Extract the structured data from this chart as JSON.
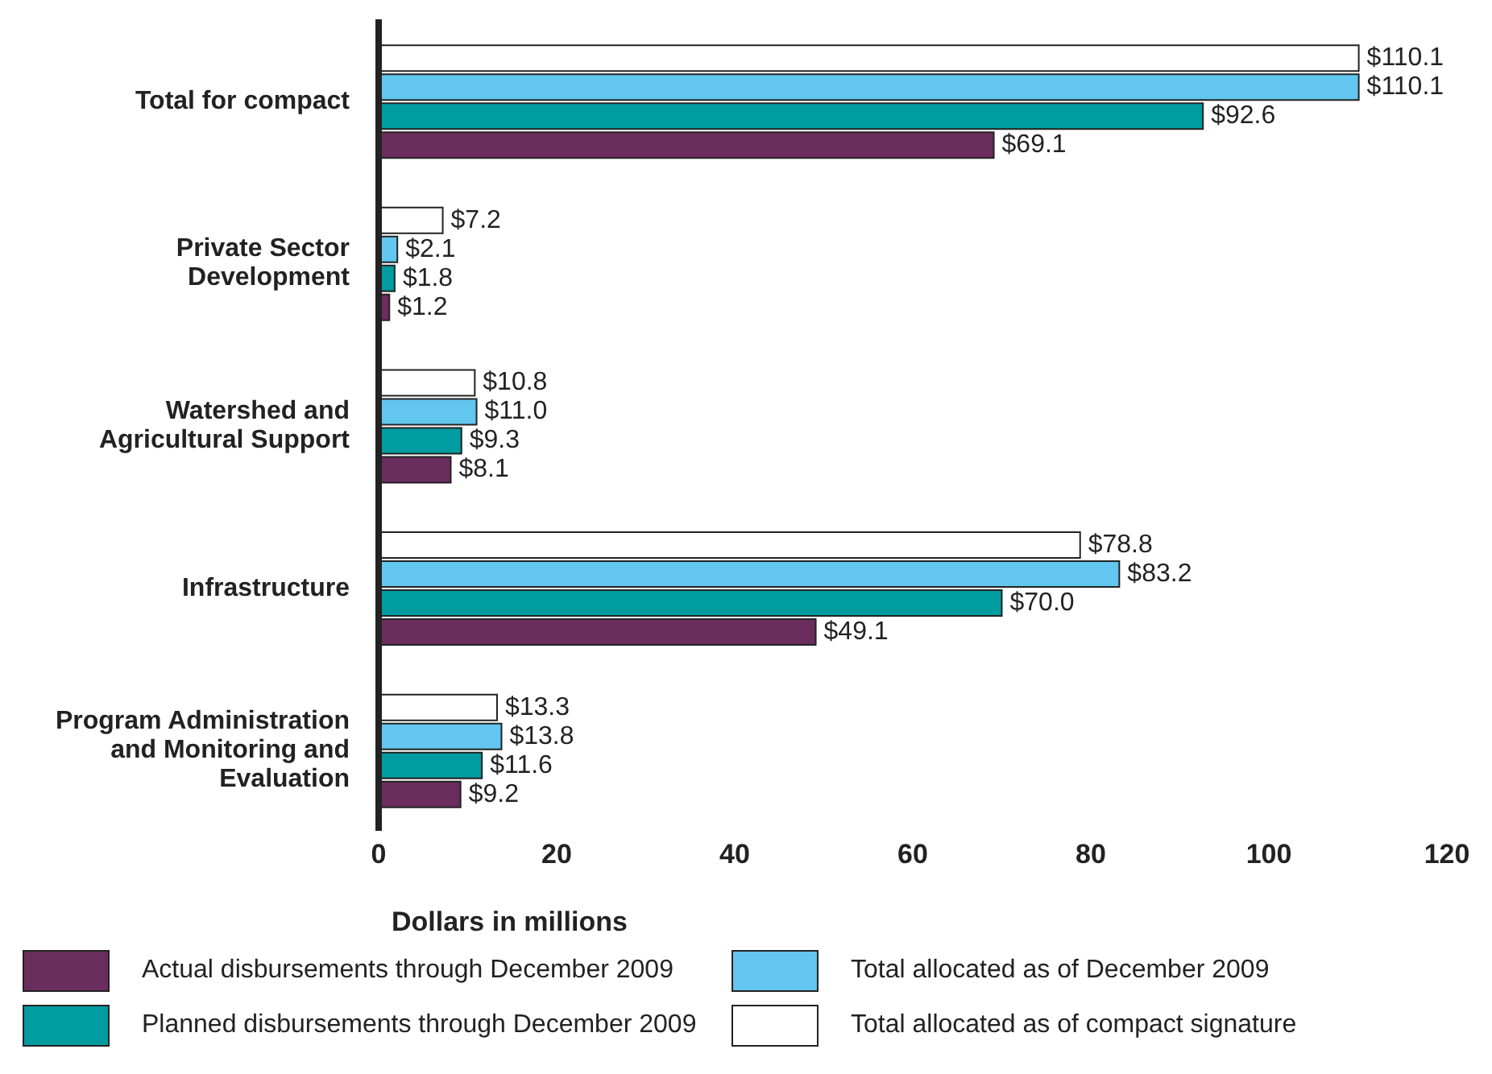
{
  "chart_data": {
    "type": "bar",
    "orientation": "horizontal",
    "xlabel": "Dollars in millions",
    "categories": [
      "Total for compact",
      "Private Sector Development",
      "Watershed and Agricultural Support",
      "Infrastructure",
      "Program Administration and Monitoring and Evaluation"
    ],
    "xlim": [
      0,
      120
    ],
    "xticks": [
      0,
      20,
      40,
      60,
      80,
      100,
      120
    ],
    "grid": false,
    "legend": "bottom",
    "series": [
      {
        "name": "Total allocated as of compact signature",
        "color": "#ffffff",
        "values": [
          110.1,
          7.2,
          10.8,
          78.8,
          13.3
        ],
        "value_labels": [
          "$110.1",
          "$7.2",
          "$10.8",
          "$78.8",
          "$13.3"
        ]
      },
      {
        "name": "Total allocated as of December 2009",
        "color": "#62c6ee",
        "values": [
          110.1,
          2.1,
          11.0,
          83.2,
          13.8
        ],
        "value_labels": [
          "$110.1",
          "$2.1",
          "$11.0",
          "$83.2",
          "$13.8"
        ]
      },
      {
        "name": "Planned disbursements through December 2009",
        "color": "#009ca1",
        "values": [
          92.6,
          1.8,
          9.3,
          70.0,
          11.6
        ],
        "value_labels": [
          "$92.6",
          "$1.8",
          "$9.3",
          "$70.0",
          "$11.6"
        ]
      },
      {
        "name": "Actual disbursements through December 2009",
        "color": "#6b2d5e",
        "values": [
          69.1,
          1.2,
          8.1,
          49.1,
          9.2
        ],
        "value_labels": [
          "$69.1",
          "$1.2",
          "$8.1",
          "$49.1",
          "$9.2"
        ]
      }
    ]
  }
}
